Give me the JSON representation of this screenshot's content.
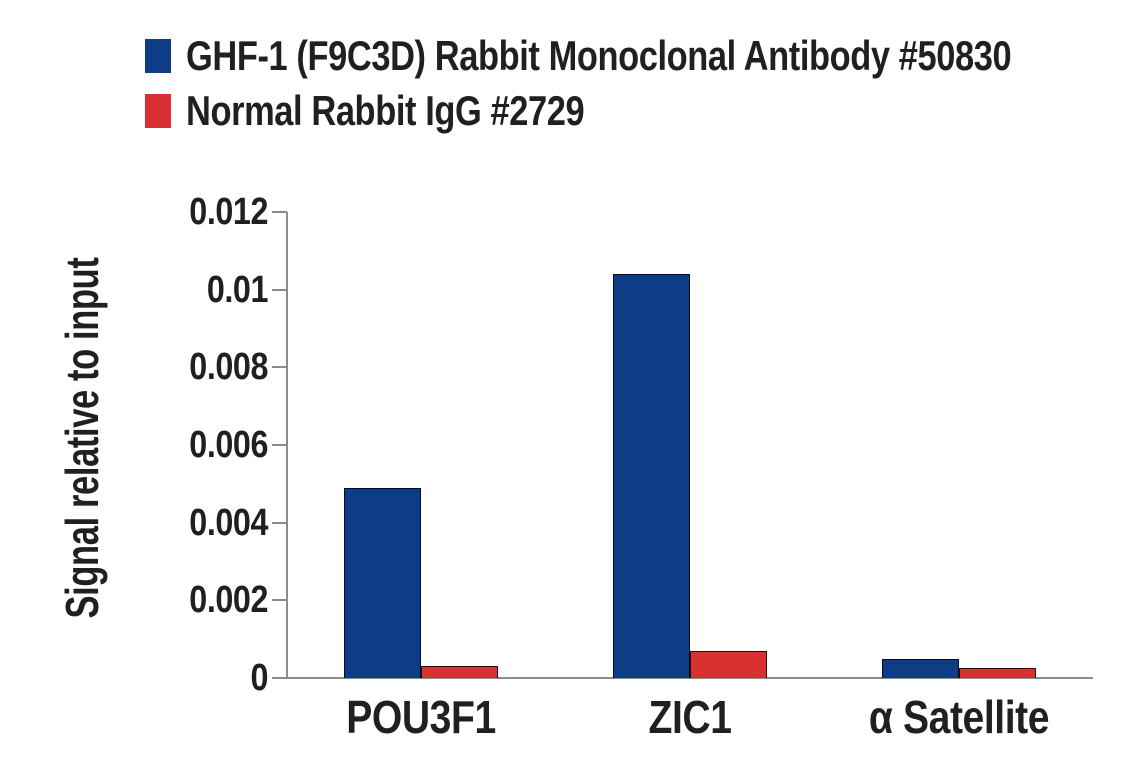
{
  "chart_data": {
    "type": "bar",
    "title": "",
    "ylabel": "Signal relative to input",
    "xlabel": "",
    "ylim": [
      0,
      0.012
    ],
    "yticks": [
      {
        "value": 0,
        "label": "0"
      },
      {
        "value": 0.002,
        "label": "0.002"
      },
      {
        "value": 0.004,
        "label": "0.004"
      },
      {
        "value": 0.006,
        "label": "0.006"
      },
      {
        "value": 0.008,
        "label": "0.008"
      },
      {
        "value": 0.01,
        "label": "0.01"
      },
      {
        "value": 0.012,
        "label": "0.012"
      }
    ],
    "categories": [
      "POU3F1",
      "ZIC1",
      "α Satellite"
    ],
    "series": [
      {
        "name": "GHF-1 (F9C3D) Rabbit Monoclonal Antibody #50830",
        "color": "#0E3C86",
        "values": [
          0.0049,
          0.0104,
          0.0005
        ]
      },
      {
        "name": "Normal Rabbit IgG #2729",
        "color": "#D93032",
        "values": [
          0.0003,
          0.0007,
          0.00025
        ]
      }
    ],
    "grid": false,
    "legend_position": "top-left",
    "axis_color": "#8C8C8C",
    "text_color": "#231F20"
  }
}
